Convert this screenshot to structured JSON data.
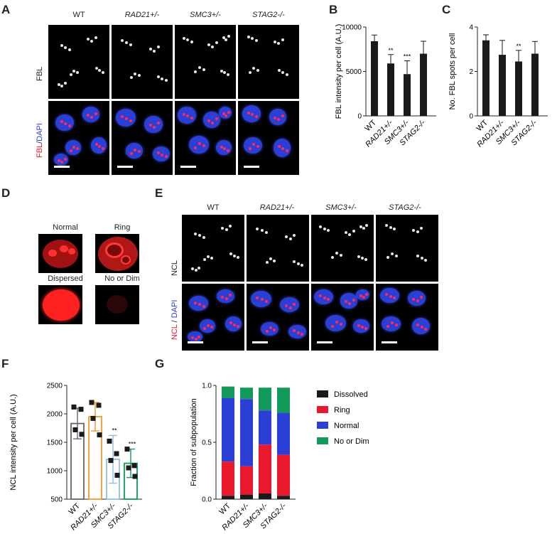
{
  "panels": {
    "A": {
      "letter": "A",
      "columns": [
        "WT",
        "RAD21+/-",
        "SMC3+/-",
        "STAG2-/-"
      ],
      "row1_label": "FBL",
      "row2_label_red": "FBL",
      "row2_label_sep": "/",
      "row2_label_blue": "DAPI"
    },
    "B": {
      "letter": "B"
    },
    "C": {
      "letter": "C"
    },
    "D": {
      "letter": "D",
      "labels": [
        "Normal",
        "Ring",
        "Dispersed",
        "No or Dim"
      ]
    },
    "E": {
      "letter": "E",
      "columns": [
        "WT",
        "RAD21+/-",
        "SMC3+/-",
        "STAG2-/-"
      ],
      "row1_label": "NCL",
      "row2_label_red": "NCL",
      "row2_label_sep": " / ",
      "row2_label_blue": "DAPI"
    },
    "F": {
      "letter": "F"
    },
    "G": {
      "letter": "G"
    }
  },
  "colors": {
    "red": "#e8192c",
    "blue": "#2b3fd6",
    "green": "#119a5a",
    "black": "#1a1a1a",
    "orange": "#f39a2c",
    "lightblue": "#8fbfe6",
    "grey": "#666666"
  },
  "chart_data": [
    {
      "id": "B",
      "type": "bar",
      "categories": [
        "WT",
        "RAD21+/-",
        "SMC3+/-",
        "STAG2-/-"
      ],
      "values": [
        8400,
        5900,
        4700,
        7000
      ],
      "errors": [
        700,
        1000,
        1500,
        1400
      ],
      "significance": [
        "",
        "**",
        "***",
        ""
      ],
      "ylabel": "FBL intensity per cell (A.U.)",
      "ylim": [
        0,
        10000
      ],
      "yticks": [
        0,
        5000,
        10000
      ]
    },
    {
      "id": "C",
      "type": "bar",
      "categories": [
        "WT",
        "RAD21+/-",
        "SMC3+/-",
        "STAG2-/-"
      ],
      "values": [
        3.4,
        2.75,
        2.45,
        2.8
      ],
      "errors": [
        0.25,
        0.65,
        0.5,
        0.55
      ],
      "significance": [
        "",
        "",
        "**",
        ""
      ],
      "ylabel": "No. FBL spots per cell",
      "ylim": [
        0,
        4
      ],
      "yticks": [
        0,
        2,
        4
      ]
    },
    {
      "id": "F",
      "type": "bar",
      "categories": [
        "WT",
        "RAD21+/-",
        "SMC3+/-",
        "STAG2-/-"
      ],
      "values": [
        1830,
        1950,
        1200,
        1130
      ],
      "errors": [
        270,
        250,
        420,
        250
      ],
      "points": [
        [
          2120,
          2080,
          1720,
          1640
        ],
        [
          2200,
          2150,
          1920,
          1630
        ],
        [
          1520,
          1300,
          1180,
          920
        ],
        [
          1380,
          1090,
          1050,
          900
        ]
      ],
      "significance": [
        "",
        "",
        "**",
        "***"
      ],
      "ylabel": "NCL intensity per cell (A.U.)",
      "ylim": [
        500,
        2500
      ],
      "yticks": [
        500,
        1000,
        1500,
        2000,
        2500
      ]
    },
    {
      "id": "G",
      "type": "bar",
      "stacked": true,
      "categories": [
        "WT",
        "RAD21+/-",
        "SMC3+/-",
        "STAG2-/-"
      ],
      "series": [
        {
          "name": "Dissolved",
          "values": [
            0.03,
            0.04,
            0.05,
            0.03
          ]
        },
        {
          "name": "Ring",
          "values": [
            0.3,
            0.25,
            0.43,
            0.36
          ]
        },
        {
          "name": "Normal",
          "values": [
            0.56,
            0.59,
            0.3,
            0.37
          ]
        },
        {
          "name": "No or Dim",
          "values": [
            0.1,
            0.1,
            0.2,
            0.22
          ]
        }
      ],
      "ylabel": "Fraction of subpopulation",
      "ylim": [
        0,
        1
      ],
      "yticks": [
        "0.0",
        "0.5",
        "1.0"
      ]
    }
  ]
}
